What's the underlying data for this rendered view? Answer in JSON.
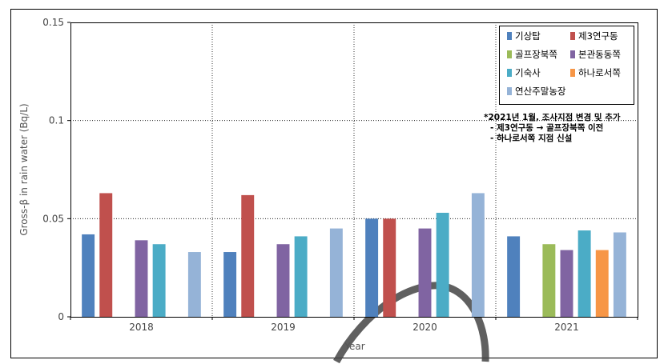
{
  "chart_data": {
    "type": "bar",
    "title": "",
    "xlabel": "Year",
    "ylabel": "Gross-β in rain water (Bq/L)",
    "ylim": [
      0,
      0.15
    ],
    "yticks": [
      0,
      0.05,
      0.1,
      0.15
    ],
    "ytick_labels": [
      "0",
      "0.05",
      "0.1",
      "0.15"
    ],
    "categories": [
      "2018",
      "2019",
      "2020",
      "2021"
    ],
    "grid": "dotted",
    "legend_position": "top-right",
    "series": [
      {
        "name": "기상탑",
        "color": "#4f81bd",
        "values": [
          0.042,
          0.033,
          0.05,
          0.041
        ]
      },
      {
        "name": "제3연구동",
        "color": "#c0504d",
        "values": [
          0.063,
          0.062,
          0.05,
          null
        ]
      },
      {
        "name": "골프장북쪽",
        "color": "#9bbb59",
        "values": [
          null,
          null,
          null,
          0.037
        ]
      },
      {
        "name": "본관동동쪽",
        "color": "#8064a2",
        "values": [
          0.039,
          0.037,
          0.045,
          0.034
        ]
      },
      {
        "name": "기숙사",
        "color": "#4bacc6",
        "values": [
          0.037,
          0.041,
          0.053,
          0.044
        ]
      },
      {
        "name": "하나로서쪽",
        "color": "#f79646",
        "values": [
          null,
          null,
          null,
          0.034
        ]
      },
      {
        "name": "연산주말농장",
        "color": "#95b3d7",
        "values": [
          0.033,
          0.045,
          0.063,
          0.043
        ]
      }
    ],
    "annotation": [
      "*2021년 1월, 조사지점 변경 및 추가",
      "- 제3연구동 → 골프장북쪽 이전",
      "- 하나로서쪽 지점 신설"
    ]
  }
}
